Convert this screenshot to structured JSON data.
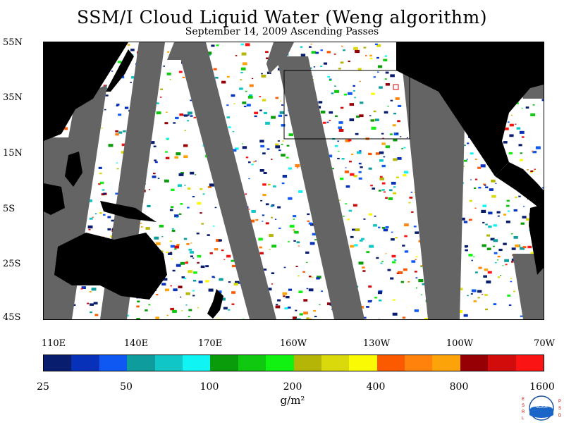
{
  "title": "SSM/I Cloud Liquid Water (Weng algorithm)",
  "subtitle": "September 14, 2009  Ascending Passes",
  "lat_labels": [
    "55N",
    "35N",
    "15N",
    "5S",
    "25S",
    "45S"
  ],
  "lon_labels": [
    "110E",
    "140E",
    "170E",
    "160W",
    "130W",
    "100W",
    "70W"
  ],
  "colorbar": {
    "colors": [
      "#081d6e",
      "#0731b8",
      "#1058f2",
      "#0e9c9c",
      "#11c6c6",
      "#10f4f4",
      "#0b9c0b",
      "#0fc80f",
      "#12f212",
      "#b5b507",
      "#d9d90c",
      "#fafa05",
      "#fc5a00",
      "#fe820c",
      "#fca30a",
      "#960005",
      "#d20b0b",
      "#fb1414"
    ],
    "labels": [
      "25",
      "50",
      "100",
      "200",
      "400",
      "800",
      "1600"
    ]
  },
  "units": "g/m²",
  "logo": {
    "text": "NOAA",
    "left_letters": "ESRL",
    "right_letters": "PSD"
  },
  "colors": {
    "land": "#000000",
    "no_data_swath_gap": "#646464",
    "no_cloud_ocean": "#ffffff"
  }
}
